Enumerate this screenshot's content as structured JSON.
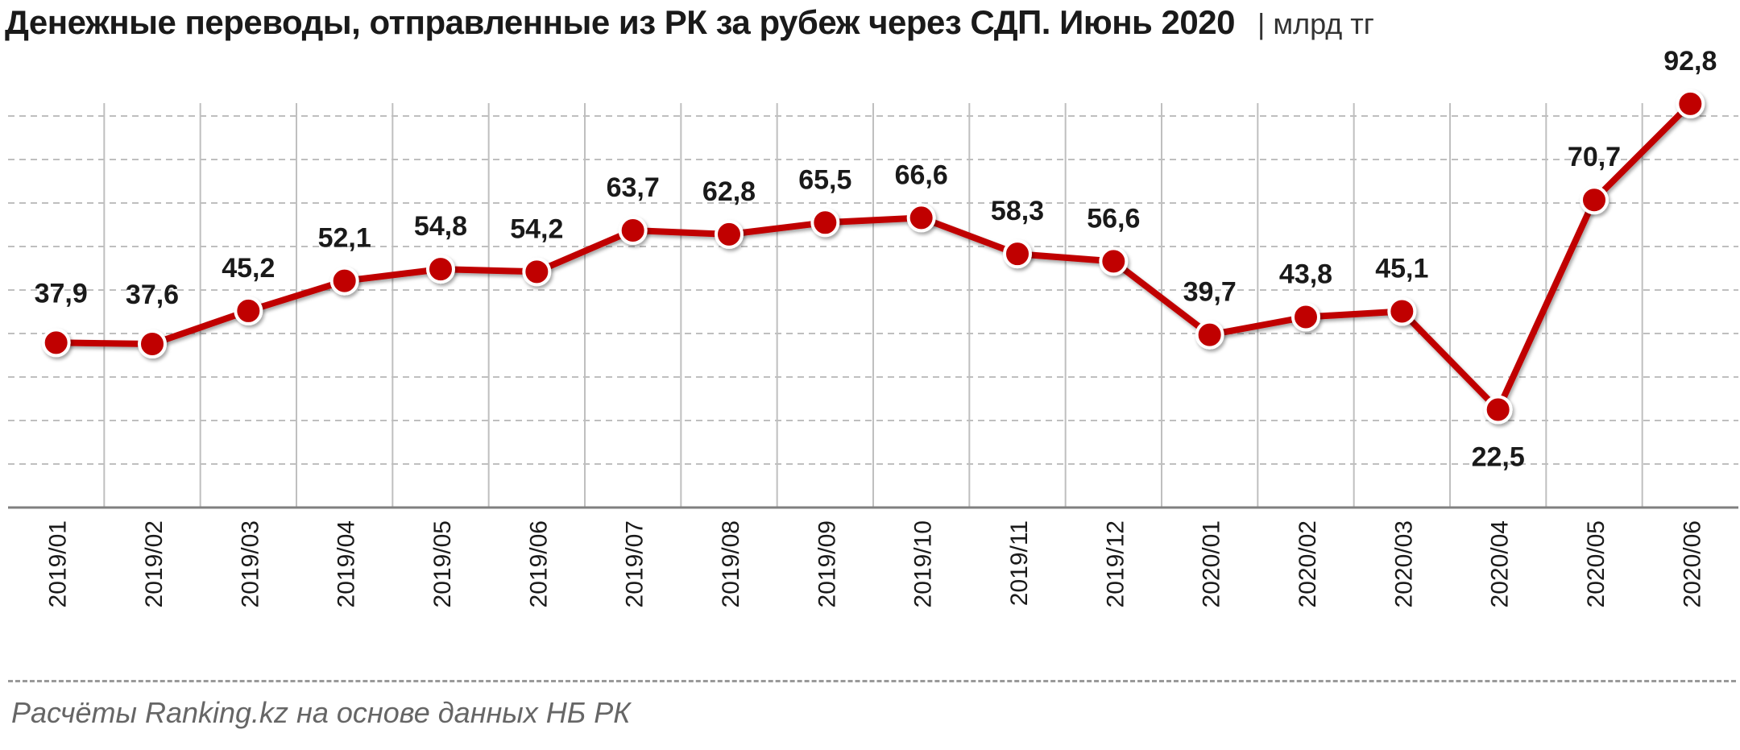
{
  "title": "Денежные переводы, отправленные из РК за рубеж через СДП. Июнь 2020",
  "unit": "| млрд тг",
  "source": "Расчёты Ranking.kz на основе данных НБ РК",
  "colors": {
    "line": "#c00000",
    "grid": "#bfbfbf",
    "axis": "#808080",
    "text": "#1a1a1a"
  },
  "chart_data": {
    "type": "line",
    "title": "Денежные переводы, отправленные из РК за рубеж через СДП. Июнь 2020",
    "ylabel": "",
    "xlabel": "",
    "categories": [
      "2019/01",
      "2019/02",
      "2019/03",
      "2019/04",
      "2019/05",
      "2019/06",
      "2019/07",
      "2019/08",
      "2019/09",
      "2019/10",
      "2019/11",
      "2019/12",
      "2020/01",
      "2020/02",
      "2020/03",
      "2020/04",
      "2020/05",
      "2020/06"
    ],
    "labels": [
      "37,9",
      "37,6",
      "45,2",
      "52,1",
      "54,8",
      "54,2",
      "63,7",
      "62,8",
      "65,5",
      "66,6",
      "58,3",
      "56,6",
      "39,7",
      "43,8",
      "45,1",
      "22,5",
      "70,7",
      "92,8"
    ],
    "series": [
      {
        "values": [
          37.9,
          37.6,
          45.2,
          52.1,
          54.8,
          54.2,
          63.7,
          62.8,
          65.5,
          66.6,
          58.3,
          56.6,
          39.7,
          43.8,
          45.1,
          22.5,
          70.7,
          92.8
        ]
      }
    ],
    "label_position": [
      "above",
      "above",
      "above",
      "above",
      "above",
      "above",
      "above",
      "above",
      "above",
      "above",
      "above",
      "above",
      "above",
      "above",
      "above",
      "below",
      "above",
      "above"
    ],
    "ylim": [
      0,
      100
    ],
    "grid": true,
    "legend": "none"
  }
}
